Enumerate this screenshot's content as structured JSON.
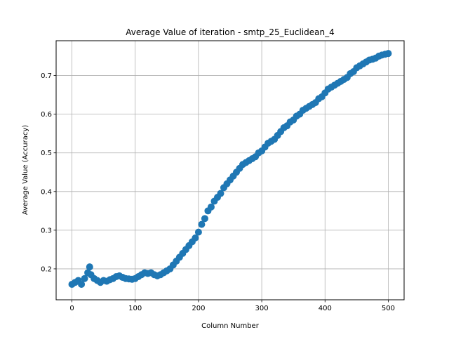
{
  "chart_data": {
    "type": "scatter",
    "title": "Average Value of iteration - smtp_25_Euclidean_4",
    "xlabel": "Column Number",
    "ylabel": "Average Value (Accuracy)",
    "xlim": [
      -25,
      525
    ],
    "ylim": [
      0.12,
      0.79
    ],
    "xticks": [
      0,
      100,
      200,
      300,
      400,
      500
    ],
    "xtick_labels": [
      "0",
      "100",
      "200",
      "300",
      "400",
      "500"
    ],
    "yticks": [
      0.2,
      0.3,
      0.4,
      0.5,
      0.6,
      0.7
    ],
    "ytick_labels": [
      "0.2",
      "0.3",
      "0.4",
      "0.5",
      "0.6",
      "0.7"
    ],
    "grid": true,
    "marker_color": "#1f77b4",
    "x": [
      0,
      5,
      10,
      15,
      20,
      25,
      28,
      30,
      35,
      40,
      45,
      50,
      55,
      60,
      65,
      70,
      75,
      80,
      85,
      90,
      95,
      100,
      105,
      110,
      115,
      120,
      125,
      130,
      135,
      140,
      145,
      150,
      155,
      160,
      165,
      170,
      175,
      180,
      185,
      190,
      195,
      200,
      205,
      210,
      215,
      220,
      225,
      230,
      235,
      240,
      245,
      250,
      255,
      260,
      265,
      270,
      275,
      280,
      285,
      290,
      295,
      300,
      305,
      310,
      315,
      320,
      325,
      330,
      335,
      340,
      345,
      350,
      355,
      360,
      365,
      370,
      375,
      380,
      385,
      390,
      395,
      400,
      405,
      410,
      415,
      420,
      425,
      430,
      435,
      440,
      445,
      450,
      455,
      460,
      465,
      470,
      475,
      480,
      485,
      490,
      495,
      500
    ],
    "y": [
      0.16,
      0.165,
      0.17,
      0.16,
      0.175,
      0.19,
      0.205,
      0.185,
      0.175,
      0.17,
      0.165,
      0.17,
      0.168,
      0.172,
      0.175,
      0.18,
      0.182,
      0.178,
      0.175,
      0.174,
      0.173,
      0.175,
      0.18,
      0.185,
      0.19,
      0.188,
      0.19,
      0.185,
      0.182,
      0.185,
      0.19,
      0.195,
      0.2,
      0.21,
      0.22,
      0.23,
      0.24,
      0.25,
      0.26,
      0.27,
      0.28,
      0.295,
      0.315,
      0.33,
      0.35,
      0.36,
      0.375,
      0.385,
      0.395,
      0.41,
      0.42,
      0.43,
      0.44,
      0.45,
      0.46,
      0.47,
      0.475,
      0.48,
      0.485,
      0.49,
      0.5,
      0.505,
      0.515,
      0.525,
      0.53,
      0.535,
      0.545,
      0.555,
      0.565,
      0.57,
      0.58,
      0.585,
      0.595,
      0.6,
      0.61,
      0.615,
      0.62,
      0.625,
      0.63,
      0.64,
      0.645,
      0.655,
      0.665,
      0.67,
      0.675,
      0.68,
      0.685,
      0.69,
      0.695,
      0.705,
      0.71,
      0.72,
      0.725,
      0.73,
      0.735,
      0.74,
      0.742,
      0.745,
      0.75,
      0.753,
      0.755,
      0.757
    ]
  }
}
